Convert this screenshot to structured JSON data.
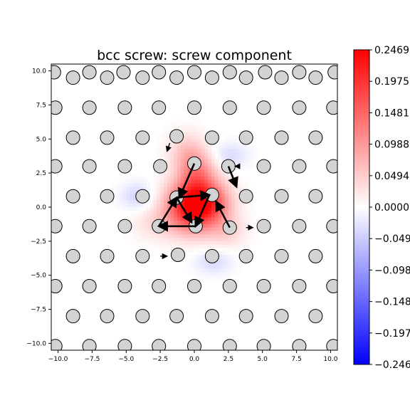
{
  "chart_data": {
    "type": "heatmap",
    "title": "bcc screw: screw component",
    "xlabel": "",
    "ylabel": "",
    "xlim": [
      -10.5,
      10.5
    ],
    "ylim": [
      -10.5,
      10.5
    ],
    "x_ticks": [
      -10.0,
      -7.5,
      -5.0,
      -2.5,
      0.0,
      2.5,
      5.0,
      7.5,
      10.0
    ],
    "y_ticks": [
      -10.0,
      -7.5,
      -5.0,
      -2.5,
      0.0,
      2.5,
      5.0,
      7.5,
      10.0
    ],
    "x_tick_labels": [
      "−10.0",
      "−7.5",
      "−5.0",
      "−2.5",
      "0.0",
      "2.5",
      "5.0",
      "7.5",
      "10.0"
    ],
    "y_tick_labels": [
      "−10.0",
      "−7.5",
      "−5.0",
      "−2.5",
      "0.0",
      "2.5",
      "5.0",
      "7.5",
      "10.0"
    ],
    "grid": false,
    "colormap": "bwr",
    "colorbar": {
      "min": -0.2469,
      "max": 0.2469,
      "ticks": [
        0.2469,
        0.1975,
        0.1481,
        0.0988,
        0.0494,
        0.0,
        -0.0494,
        -0.0988,
        -0.1481,
        -0.1975,
        -0.2469
      ],
      "tick_labels": [
        "0.2469",
        "0.1975",
        "0.1481",
        "0.0988",
        "0.0494",
        "0.0000",
        "−0.0494",
        "−0.0988",
        "−0.1481",
        "−0.1975",
        "−0.2469"
      ]
    },
    "colors": {
      "positive": "#ff0000",
      "negative": "#0000ff",
      "atom_fill": "#d3d3d3",
      "atom_edge": "#000000"
    },
    "atom_lattice": {
      "y_rows": [
        9.9,
        7.7,
        5.5,
        3.3,
        1.1,
        -1.1,
        -3.3,
        -5.5,
        -7.7,
        -9.9
      ],
      "x_start_even": -10.2,
      "x_start_odd": -8.8,
      "x_spacing": 2.55
    },
    "atoms": [
      [
        -10.3,
        9.9
      ],
      [
        -7.7,
        9.9
      ],
      [
        -5.2,
        9.9
      ],
      [
        -2.6,
        9.9
      ],
      [
        0.0,
        9.9
      ],
      [
        2.6,
        9.9
      ],
      [
        5.2,
        9.9
      ],
      [
        7.7,
        9.9
      ],
      [
        10.3,
        9.9
      ],
      [
        -11.0,
        9.5
      ],
      [
        -8.9,
        9.5
      ],
      [
        -6.4,
        9.5
      ],
      [
        -3.8,
        9.5
      ],
      [
        -1.3,
        9.5
      ],
      [
        1.3,
        9.5
      ],
      [
        3.8,
        9.5
      ],
      [
        6.4,
        9.5
      ],
      [
        8.9,
        9.5
      ],
      [
        11.0,
        9.5
      ],
      [
        -10.2,
        7.3
      ],
      [
        -7.7,
        7.3
      ],
      [
        -5.1,
        7.3
      ],
      [
        -2.6,
        7.3
      ],
      [
        0.0,
        7.3
      ],
      [
        2.6,
        7.3
      ],
      [
        5.1,
        7.3
      ],
      [
        7.7,
        7.3
      ],
      [
        10.2,
        7.3
      ],
      [
        -11.0,
        5.1
      ],
      [
        -8.9,
        5.1
      ],
      [
        -6.4,
        5.1
      ],
      [
        -3.8,
        5.1
      ],
      [
        -1.3,
        5.2
      ],
      [
        1.3,
        5.1
      ],
      [
        3.8,
        5.1
      ],
      [
        6.4,
        5.1
      ],
      [
        8.9,
        5.1
      ],
      [
        11.0,
        5.1
      ],
      [
        -10.2,
        3.0
      ],
      [
        -7.7,
        3.0
      ],
      [
        -5.1,
        3.0
      ],
      [
        -2.5,
        3.0
      ],
      [
        0.0,
        3.2
      ],
      [
        2.5,
        3.0
      ],
      [
        5.1,
        3.0
      ],
      [
        7.7,
        3.0
      ],
      [
        10.2,
        3.0
      ],
      [
        -11.0,
        0.8
      ],
      [
        -8.9,
        0.8
      ],
      [
        -6.4,
        0.8
      ],
      [
        -3.8,
        0.8
      ],
      [
        -1.3,
        0.7
      ],
      [
        1.3,
        0.9
      ],
      [
        3.8,
        0.8
      ],
      [
        6.4,
        0.8
      ],
      [
        8.9,
        0.8
      ],
      [
        11.0,
        0.8
      ],
      [
        -10.2,
        -1.4
      ],
      [
        -7.7,
        -1.4
      ],
      [
        -5.1,
        -1.4
      ],
      [
        -2.6,
        -1.4
      ],
      [
        0.1,
        -1.4
      ],
      [
        2.6,
        -1.5
      ],
      [
        5.1,
        -1.4
      ],
      [
        7.7,
        -1.4
      ],
      [
        10.2,
        -1.4
      ],
      [
        -11.0,
        -3.6
      ],
      [
        -8.9,
        -3.6
      ],
      [
        -6.4,
        -3.6
      ],
      [
        -3.8,
        -3.6
      ],
      [
        -1.2,
        -3.5
      ],
      [
        1.3,
        -3.6
      ],
      [
        3.8,
        -3.6
      ],
      [
        6.4,
        -3.6
      ],
      [
        8.9,
        -3.6
      ],
      [
        11.0,
        -3.6
      ],
      [
        -10.2,
        -5.8
      ],
      [
        -7.7,
        -5.8
      ],
      [
        -5.1,
        -5.8
      ],
      [
        -2.6,
        -5.8
      ],
      [
        0.0,
        -5.8
      ],
      [
        2.6,
        -5.8
      ],
      [
        5.1,
        -5.8
      ],
      [
        7.7,
        -5.8
      ],
      [
        10.2,
        -5.8
      ],
      [
        -11.0,
        -8.0
      ],
      [
        -8.9,
        -8.0
      ],
      [
        -6.4,
        -8.0
      ],
      [
        -3.8,
        -8.0
      ],
      [
        -1.3,
        -8.0
      ],
      [
        1.3,
        -8.0
      ],
      [
        3.8,
        -8.0
      ],
      [
        6.4,
        -8.0
      ],
      [
        8.9,
        -8.0
      ],
      [
        11.0,
        -8.0
      ],
      [
        -10.2,
        -10.2
      ],
      [
        -7.7,
        -10.2
      ],
      [
        -5.1,
        -10.2
      ],
      [
        -2.6,
        -10.2
      ],
      [
        0.0,
        -10.2
      ],
      [
        2.6,
        -10.2
      ],
      [
        5.1,
        -10.2
      ],
      [
        7.7,
        -10.2
      ],
      [
        10.2,
        -10.2
      ]
    ],
    "arrows": [
      [
        0.0,
        3.2,
        -1.1,
        0.7
      ],
      [
        -1.3,
        0.7,
        1.1,
        0.9
      ],
      [
        1.1,
        0.9,
        0.1,
        -1.4
      ],
      [
        0.1,
        -1.4,
        -2.6,
        -1.4
      ],
      [
        -2.6,
        -1.4,
        -1.3,
        0.7
      ],
      [
        2.6,
        -1.5,
        1.6,
        0.4
      ],
      [
        -1.3,
        0.7,
        -0.2,
        -1.1
      ],
      [
        2.5,
        3.0,
        3.1,
        1.5
      ],
      [
        -1.8,
        4.7,
        -2.0,
        4.1
      ],
      [
        -2.5,
        -3.6,
        -2.0,
        -3.6
      ],
      [
        3.2,
        3.0,
        3.0,
        3.0
      ],
      [
        3.8,
        -1.5,
        4.3,
        -1.5
      ]
    ],
    "field_centers": [
      {
        "x": -0.3,
        "y": 0.0,
        "value": 0.22,
        "sx": 1.8,
        "sy": 1.8
      },
      {
        "x": 1.2,
        "y": 0.3,
        "value": 0.12,
        "sx": 1.6,
        "sy": 1.6
      },
      {
        "x": 0.2,
        "y": 2.5,
        "value": 0.1,
        "sx": 1.3,
        "sy": 1.6
      },
      {
        "x": -0.6,
        "y": 4.0,
        "value": 0.05,
        "sx": 1.3,
        "sy": 1.5
      },
      {
        "x": 2.4,
        "y": -1.8,
        "value": 0.04,
        "sx": 1.4,
        "sy": 1.2
      },
      {
        "x": -3.0,
        "y": -1.2,
        "value": 0.03,
        "sx": 1.6,
        "sy": 1.2
      },
      {
        "x": -4.2,
        "y": 0.8,
        "value": -0.04,
        "sx": 1.2,
        "sy": 1.0
      },
      {
        "x": 2.6,
        "y": 3.8,
        "value": -0.035,
        "sx": 1.3,
        "sy": 0.9
      },
      {
        "x": 1.4,
        "y": -4.0,
        "value": -0.035,
        "sx": 1.4,
        "sy": 0.9
      }
    ]
  }
}
